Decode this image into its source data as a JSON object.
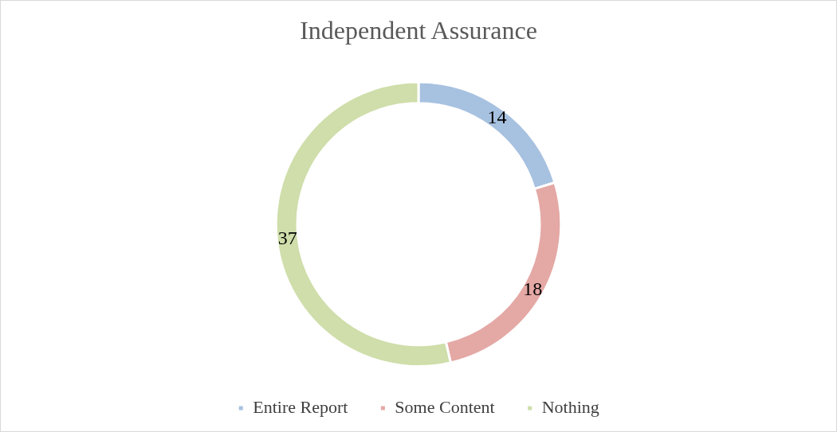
{
  "chart_data": {
    "type": "donut",
    "title": "Independent Assurance",
    "categories": [
      "Entire Report",
      "Some Content",
      "Nothing"
    ],
    "values": [
      14,
      18,
      37
    ],
    "colors": [
      "#a7c1e0",
      "#e4a8a5",
      "#cfdeaa"
    ],
    "data_labels": true,
    "legend": "bottom"
  }
}
